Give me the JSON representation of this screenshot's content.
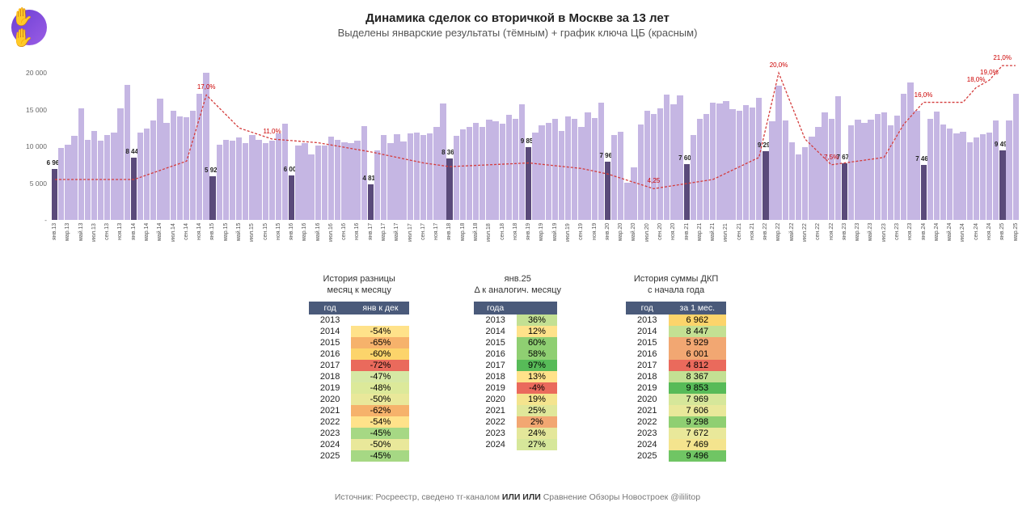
{
  "logo_glyph": "✋✋",
  "title": "Динамика сделок со вторичкой в Москве за 13 лет",
  "subtitle": "Выделены январские результаты (тёмным) + график ключа ЦБ (красным)",
  "chart": {
    "type": "bar+line",
    "ymax": 22000,
    "yticks": [
      0,
      5000,
      10000,
      15000,
      20000
    ],
    "ytick_labels": [
      "-",
      "5 000",
      "10 000",
      "15 000",
      "20 000"
    ],
    "bar_color": "#c5b6e3",
    "jan_bar_color": "#5a4a7a",
    "line_color": "#d43c3c",
    "background": "#ffffff",
    "months": [
      "янв",
      "мар",
      "май",
      "июл",
      "сен",
      "ноя"
    ],
    "years": [
      13,
      14,
      15,
      16,
      17,
      18,
      19,
      20,
      21,
      22,
      23,
      24,
      25
    ],
    "jan_values": {
      "13": 6962,
      "14": 8447,
      "15": 5929,
      "16": 6001,
      "17": 4812,
      "18": 8367,
      "19": 9853,
      "20": 7969,
      "21": 7606,
      "22": 9298,
      "23": 7672,
      "24": 7469,
      "25": 9496
    },
    "jan_labels_fmt": {
      "13": "6 962",
      "14": "8 447",
      "15": "5 929",
      "16": "6 001",
      "17": "4 812",
      "18": "8 367",
      "19": "9 853",
      "20": "7 969",
      "21": "7 606",
      "22": "9 298",
      "23": "7 672",
      "24": "7 469",
      "25": "9 496"
    },
    "bars": [
      6962,
      9800,
      10200,
      11400,
      15200,
      10900,
      12100,
      10800,
      11500,
      11900,
      15200,
      18400,
      8447,
      11900,
      12400,
      13500,
      16500,
      13200,
      14800,
      14100,
      14000,
      14900,
      17200,
      20000,
      5929,
      10200,
      10900,
      10800,
      11200,
      10500,
      11500,
      10900,
      10400,
      10800,
      11800,
      13100,
      6001,
      10100,
      10400,
      8900,
      10100,
      10100,
      11300,
      10900,
      10600,
      10400,
      10800,
      12800,
      4812,
      9500,
      11600,
      10400,
      11700,
      10700,
      11800,
      11900,
      11500,
      11800,
      12700,
      15800,
      8367,
      11400,
      12300,
      12600,
      13200,
      12700,
      13600,
      13400,
      13100,
      14300,
      13800,
      15700,
      9853,
      11900,
      12900,
      13200,
      13800,
      12100,
      14100,
      13700,
      12600,
      14600,
      13900,
      15900,
      7969,
      11500,
      12000,
      5100,
      7100,
      13000,
      14800,
      14400,
      15200,
      17000,
      15700,
      16900,
      7606,
      11600,
      13800,
      14400,
      15900,
      15800,
      16200,
      15100,
      14900,
      15600,
      15300,
      16600,
      9298,
      13400,
      18300,
      13500,
      10600,
      8900,
      9900,
      11300,
      12700,
      14600,
      13700,
      16800,
      7672,
      12900,
      13600,
      13200,
      13600,
      14400,
      14600,
      12900,
      14200,
      17200,
      18700,
      14900,
      7469,
      13800,
      14700,
      13000,
      12400,
      11800,
      12000,
      10600,
      11200,
      11700,
      11900,
      13500,
      9496,
      13500,
      17200
    ],
    "rate_points": [
      {
        "idx": 0,
        "rate": 5.5
      },
      {
        "idx": 12,
        "rate": 5.5
      },
      {
        "idx": 20,
        "rate": 8.0
      },
      {
        "idx": 23,
        "rate": 17.0,
        "label": "17,0%"
      },
      {
        "idx": 28,
        "rate": 12.5
      },
      {
        "idx": 33,
        "rate": 11.0,
        "label": "11,0%"
      },
      {
        "idx": 40,
        "rate": 10.5
      },
      {
        "idx": 48,
        "rate": 9.25
      },
      {
        "idx": 56,
        "rate": 7.75
      },
      {
        "idx": 60,
        "rate": 7.25
      },
      {
        "idx": 72,
        "rate": 7.75
      },
      {
        "idx": 80,
        "rate": 7.0
      },
      {
        "idx": 84,
        "rate": 6.25
      },
      {
        "idx": 91,
        "rate": 4.25,
        "label": "4,25"
      },
      {
        "idx": 100,
        "rate": 5.5
      },
      {
        "idx": 107,
        "rate": 8.5
      },
      {
        "idx": 110,
        "rate": 20.0,
        "label": "20,0%"
      },
      {
        "idx": 114,
        "rate": 11.0
      },
      {
        "idx": 118,
        "rate": 7.5,
        "label": "7,5%"
      },
      {
        "idx": 126,
        "rate": 8.5
      },
      {
        "idx": 129,
        "rate": 13.0
      },
      {
        "idx": 132,
        "rate": 16.0,
        "label": "16,0%"
      },
      {
        "idx": 138,
        "rate": 16.0
      },
      {
        "idx": 140,
        "rate": 18.0,
        "label": "18,0%"
      },
      {
        "idx": 142,
        "rate": 19.0,
        "label": "19,0%"
      },
      {
        "idx": 144,
        "rate": 21.0,
        "label": "21,0%"
      },
      {
        "idx": 146,
        "rate": 21.0
      }
    ],
    "rate_scale_max": 22
  },
  "table1": {
    "title_l1": "История разницы",
    "title_l2": "месяц к месяцу",
    "col1": "год",
    "col2": "янв к дек",
    "rows": [
      {
        "year": "2013",
        "val": "",
        "bg": "#ffffff"
      },
      {
        "year": "2014",
        "val": "-54%",
        "bg": "#ffe28a"
      },
      {
        "year": "2015",
        "val": "-65%",
        "bg": "#f6b26b"
      },
      {
        "year": "2016",
        "val": "-60%",
        "bg": "#fcd46b"
      },
      {
        "year": "2017",
        "val": "-72%",
        "bg": "#ea6a5c"
      },
      {
        "year": "2018",
        "val": "-47%",
        "bg": "#d6e8a4"
      },
      {
        "year": "2019",
        "val": "-48%",
        "bg": "#dce99a"
      },
      {
        "year": "2020",
        "val": "-50%",
        "bg": "#e9e89a"
      },
      {
        "year": "2021",
        "val": "-62%",
        "bg": "#f6b26b"
      },
      {
        "year": "2022",
        "val": "-54%",
        "bg": "#ffe28a"
      },
      {
        "year": "2023",
        "val": "-45%",
        "bg": "#a6d884"
      },
      {
        "year": "2024",
        "val": "-50%",
        "bg": "#e9e89a"
      },
      {
        "year": "2025",
        "val": "-45%",
        "bg": "#a6d884"
      }
    ]
  },
  "table2": {
    "title_l1": "янв.25",
    "title_l2": "Δ к аналогич. месяцу",
    "col1": "года",
    "col2": "",
    "rows": [
      {
        "year": "2013",
        "val": "36%",
        "bg": "#c3e093"
      },
      {
        "year": "2014",
        "val": "12%",
        "bg": "#ffe28a"
      },
      {
        "year": "2015",
        "val": "60%",
        "bg": "#8fcf72"
      },
      {
        "year": "2016",
        "val": "58%",
        "bg": "#8fcf72"
      },
      {
        "year": "2017",
        "val": "97%",
        "bg": "#57bb58"
      },
      {
        "year": "2018",
        "val": "13%",
        "bg": "#ffe28a"
      },
      {
        "year": "2019",
        "val": "-4%",
        "bg": "#ea6a5c"
      },
      {
        "year": "2020",
        "val": "19%",
        "bg": "#f4e48e"
      },
      {
        "year": "2021",
        "val": "25%",
        "bg": "#e0e79a"
      },
      {
        "year": "2022",
        "val": "2%",
        "bg": "#f2a772"
      },
      {
        "year": "2023",
        "val": "24%",
        "bg": "#e4e79a"
      },
      {
        "year": "2024",
        "val": "27%",
        "bg": "#d6e79a"
      }
    ]
  },
  "table3": {
    "title_l1": "История суммы ДКП",
    "title_l2": "с начала года",
    "col1": "год",
    "col2": "за 1 мес.",
    "rows": [
      {
        "year": "2013",
        "val": "6 962",
        "bg": "#fcd46b"
      },
      {
        "year": "2014",
        "val": "8 447",
        "bg": "#c3e093"
      },
      {
        "year": "2015",
        "val": "5 929",
        "bg": "#f2a772"
      },
      {
        "year": "2016",
        "val": "6 001",
        "bg": "#f2a772"
      },
      {
        "year": "2017",
        "val": "4 812",
        "bg": "#ea6a5c"
      },
      {
        "year": "2018",
        "val": "8 367",
        "bg": "#c3e093"
      },
      {
        "year": "2019",
        "val": "9 853",
        "bg": "#57bb58"
      },
      {
        "year": "2020",
        "val": "7 969",
        "bg": "#d6e79a"
      },
      {
        "year": "2021",
        "val": "7 606",
        "bg": "#e9e89a"
      },
      {
        "year": "2022",
        "val": "9 298",
        "bg": "#8fcf72"
      },
      {
        "year": "2023",
        "val": "7 672",
        "bg": "#e9e89a"
      },
      {
        "year": "2024",
        "val": "7 469",
        "bg": "#f4e48e"
      },
      {
        "year": "2025",
        "val": "9 496",
        "bg": "#70c564"
      }
    ]
  },
  "footer": {
    "prefix": "Источник: Росреестр, сведено тг-каналом ",
    "bold": "ИЛИ ИЛИ",
    "suffix": " Сравнение Обзоры Новостроек  @ililitop"
  }
}
